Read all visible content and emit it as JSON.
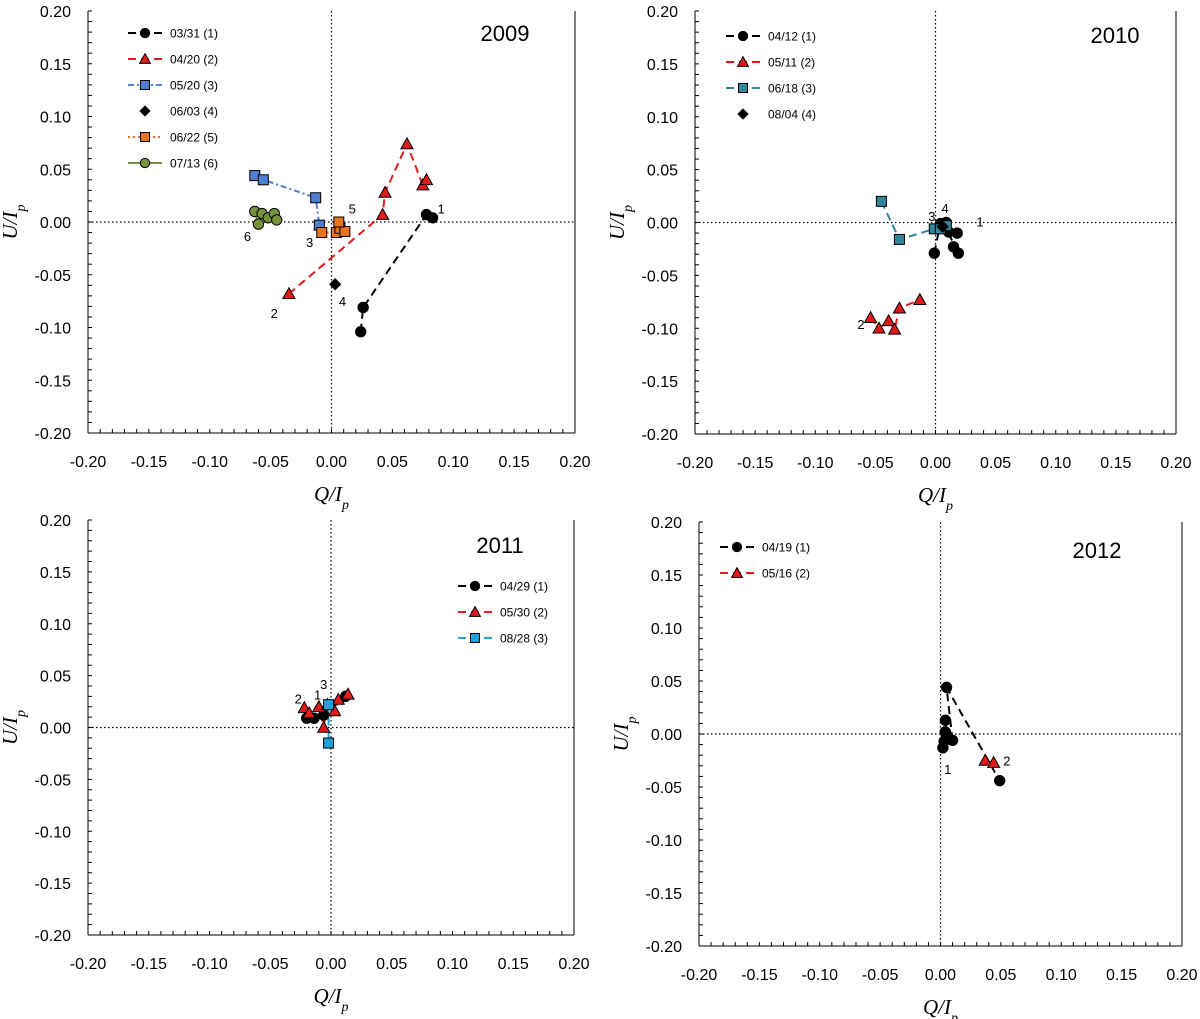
{
  "chart_data": [
    {
      "type": "scatter",
      "title": "2009",
      "xlabel": "Q/I",
      "ylabel": "U/I",
      "label_subscript": "p",
      "xlim": [
        -0.2,
        0.2
      ],
      "ylim": [
        -0.2,
        0.2
      ],
      "xticks": [
        "-0.20",
        "-0.15",
        "-0.10",
        "-0.05",
        "0.00",
        "0.05",
        "0.10",
        "0.15",
        "0.20"
      ],
      "yticks": [
        "0.20",
        "0.15",
        "0.10",
        "0.05",
        "0.00",
        "-0.05",
        "-0.10",
        "-0.15",
        "-0.20"
      ],
      "legend_position": "top-left",
      "series": [
        {
          "name": "03/31 (1)",
          "marker": "circle",
          "color": "#000000",
          "line": "dashed",
          "x": [
            0.024,
            0.026,
            0.078,
            0.083
          ],
          "y": [
            -0.104,
            -0.081,
            0.007,
            0.004
          ]
        },
        {
          "name": "04/20 (2)",
          "marker": "triangle",
          "color": "#e31a1c",
          "line": "dashed",
          "x": [
            -0.035,
            0.042,
            0.044,
            0.062,
            0.075,
            0.078
          ],
          "y": [
            -0.068,
            0.007,
            0.028,
            0.074,
            0.035,
            0.04
          ]
        },
        {
          "name": "05/20 (3)",
          "marker": "square",
          "color": "#4f7fd0",
          "line": "dashdot",
          "x": [
            -0.063,
            -0.056,
            -0.013,
            -0.01
          ],
          "y": [
            0.044,
            0.04,
            0.023,
            -0.003
          ]
        },
        {
          "name": "06/03 (4)",
          "marker": "diamond",
          "color": "#000000",
          "line": "none",
          "x": [
            0.003
          ],
          "y": [
            -0.059
          ]
        },
        {
          "name": "06/22 (5)",
          "marker": "square",
          "color": "#e8731e",
          "line": "dotted",
          "x": [
            -0.008,
            0.004,
            0.007,
            0.011,
            0.006
          ],
          "y": [
            -0.01,
            -0.01,
            -0.006,
            -0.009,
            0.0
          ]
        },
        {
          "name": "07/13 (6)",
          "marker": "circle",
          "color": "#76923c",
          "line": "solid",
          "x": [
            -0.063,
            -0.06,
            -0.057,
            -0.052,
            -0.047,
            -0.045
          ],
          "y": [
            0.01,
            -0.002,
            0.008,
            0.004,
            0.008,
            0.002
          ]
        }
      ],
      "annotations": [
        {
          "text": "1",
          "x": 0.09,
          "y": 0.012
        },
        {
          "text": "2",
          "x": -0.047,
          "y": -0.087
        },
        {
          "text": "3",
          "x": -0.018,
          "y": -0.02
        },
        {
          "text": "4",
          "x": 0.009,
          "y": -0.076
        },
        {
          "text": "5",
          "x": 0.017,
          "y": 0.012
        },
        {
          "text": "6",
          "x": -0.069,
          "y": -0.014
        }
      ]
    },
    {
      "type": "scatter",
      "title": "2010",
      "xlabel": "Q/I",
      "ylabel": "U/I",
      "label_subscript": "p",
      "xlim": [
        -0.2,
        0.2
      ],
      "ylim": [
        -0.2,
        0.2
      ],
      "xticks": [
        "-0.20",
        "-0.15",
        "-0.10",
        "-0.05",
        "0.00",
        "0.05",
        "0.10",
        "0.15",
        "0.20"
      ],
      "yticks": [
        "0.20",
        "0.15",
        "0.10",
        "0.05",
        "0.00",
        "-0.05",
        "-0.10",
        "-0.15",
        "-0.20"
      ],
      "legend_position": "top-left",
      "series": [
        {
          "name": "04/12 (1)",
          "marker": "circle",
          "color": "#000000",
          "line": "dashed",
          "x": [
            -0.001,
            0.004,
            0.009,
            0.011,
            0.018,
            0.015,
            0.019,
            0.009
          ],
          "y": [
            -0.029,
            -0.001,
            0.0,
            -0.009,
            -0.01,
            -0.023,
            -0.029,
            -0.006
          ]
        },
        {
          "name": "05/11 (2)",
          "marker": "triangle",
          "color": "#e31a1c",
          "line": "dashed",
          "x": [
            -0.054,
            -0.047,
            -0.039,
            -0.034,
            -0.03,
            -0.013
          ],
          "y": [
            -0.09,
            -0.1,
            -0.093,
            -0.101,
            -0.081,
            -0.073
          ]
        },
        {
          "name": "06/18 (3)",
          "marker": "square",
          "color": "#31869b",
          "line": "dashed",
          "x": [
            -0.045,
            -0.03,
            -0.001,
            0.004,
            0.009
          ],
          "y": [
            0.02,
            -0.016,
            -0.006,
            -0.006,
            -0.003
          ]
        },
        {
          "name": "08/04 (4)",
          "marker": "diamond",
          "color": "#000000",
          "line": "none",
          "x": [
            0.006
          ],
          "y": [
            -0.004
          ]
        }
      ],
      "annotations": [
        {
          "text": "1",
          "x": 0.037,
          "y": 0.0
        },
        {
          "text": "2",
          "x": -0.062,
          "y": -0.097
        },
        {
          "text": "3",
          "x": -0.003,
          "y": 0.005
        },
        {
          "text": "4",
          "x": 0.008,
          "y": 0.013
        }
      ]
    },
    {
      "type": "scatter",
      "title": "2011",
      "xlabel": "Q/I",
      "ylabel": "U/I",
      "label_subscript": "p",
      "xlim": [
        -0.2,
        0.2
      ],
      "ylim": [
        -0.2,
        0.2
      ],
      "xticks": [
        "-0.20",
        "-0.15",
        "-0.10",
        "-0.05",
        "0.00",
        "0.05",
        "0.10",
        "0.15",
        "0.20"
      ],
      "yticks": [
        "0.20",
        "0.15",
        "0.10",
        "0.05",
        "0.00",
        "-0.05",
        "-0.10",
        "-0.15",
        "-0.20"
      ],
      "legend_position": "top-right",
      "series": [
        {
          "name": "04/29 (1)",
          "marker": "circle",
          "color": "#000000",
          "line": "dashed",
          "x": [
            -0.02,
            -0.014,
            -0.006,
            0.012
          ],
          "y": [
            0.009,
            0.009,
            0.012,
            0.03
          ]
        },
        {
          "name": "05/30 (2)",
          "marker": "triangle",
          "color": "#e31a1c",
          "line": "dashed",
          "x": [
            -0.022,
            -0.018,
            -0.01,
            -0.006,
            -0.003,
            0.003,
            0.006,
            0.014
          ],
          "y": [
            0.019,
            0.014,
            0.02,
            0.0,
            0.022,
            0.016,
            0.027,
            0.032
          ]
        },
        {
          "name": "08/28 (3)",
          "marker": "square",
          "color": "#1fa2dc",
          "line": "dashed",
          "x": [
            -0.002,
            -0.002
          ],
          "y": [
            0.022,
            -0.015
          ]
        }
      ],
      "annotations": [
        {
          "text": "1",
          "x": -0.011,
          "y": 0.031
        },
        {
          "text": "2",
          "x": -0.027,
          "y": 0.027
        },
        {
          "text": "3",
          "x": -0.006,
          "y": 0.041
        }
      ]
    },
    {
      "type": "scatter",
      "title": "2012",
      "xlabel": "Q/I",
      "ylabel": "U/I",
      "label_subscript": "p",
      "xlim": [
        -0.2,
        0.2
      ],
      "ylim": [
        -0.2,
        0.2
      ],
      "xticks": [
        "-0.20",
        "-0.15",
        "-0.10",
        "-0.05",
        "0.00",
        "0.05",
        "0.10",
        "0.15",
        "0.20"
      ],
      "yticks": [
        "0.20",
        "0.15",
        "0.10",
        "0.05",
        "0.00",
        "-0.05",
        "-0.10",
        "-0.15",
        "-0.20"
      ],
      "legend_position": "top-left",
      "series": [
        {
          "name": "04/19 (1)",
          "marker": "circle",
          "color": "#000000",
          "line": "dashed",
          "x": [
            0.002,
            0.003,
            0.004,
            0.004,
            0.005,
            0.01,
            0.005,
            0.049
          ],
          "y": [
            -0.013,
            -0.007,
            0.002,
            0.013,
            -0.003,
            -0.006,
            0.044,
            -0.044
          ]
        },
        {
          "name": "05/16 (2)",
          "marker": "triangle",
          "color": "#e31a1c",
          "line": "dashed",
          "x": [
            0.037,
            0.044
          ],
          "y": [
            -0.025,
            -0.027
          ]
        }
      ],
      "annotations": [
        {
          "text": "1",
          "x": 0.006,
          "y": -0.034
        },
        {
          "text": "2",
          "x": 0.055,
          "y": -0.026
        }
      ]
    }
  ]
}
